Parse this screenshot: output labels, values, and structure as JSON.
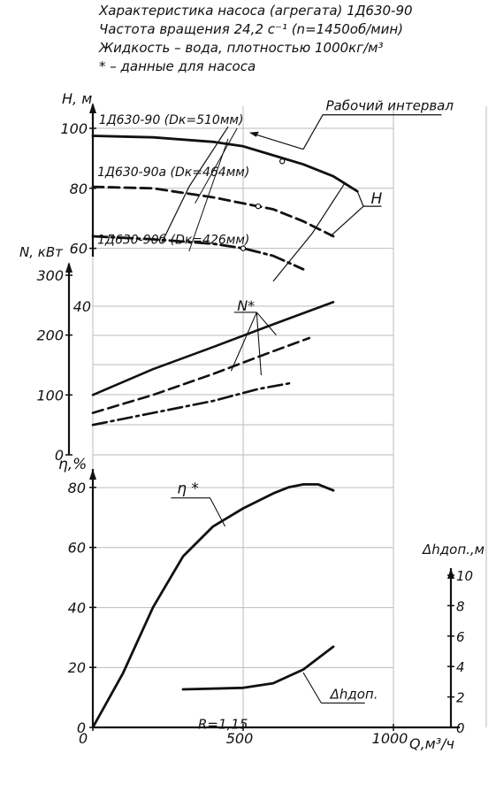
{
  "header": {
    "line1": "Характеристика насоса (агрегата) 1Д630-90",
    "line2": "Частота вращения 24,2 с⁻¹ (n=1450об/мин)",
    "line3": "Жидкость – вода, плотностью 1000кг/м³",
    "line4": "* – данные для насоса"
  },
  "chart_data": {
    "type": "line",
    "x_axis": {
      "label": "Q,м³/ч",
      "ticks": [
        "0",
        "500",
        "1000"
      ],
      "range": [
        0,
        1000
      ]
    },
    "head_axis": {
      "label": "H, м",
      "ticks": [
        "60",
        "80",
        "100"
      ],
      "range": [
        55,
        100
      ]
    },
    "power_axis": {
      "label": "N, кВт",
      "ticks": [
        "0",
        "100",
        "200",
        "300"
      ],
      "extra_tick": "40",
      "range": [
        0,
        300
      ]
    },
    "eff_axis": {
      "label": "η,%",
      "ticks": [
        "0",
        "20",
        "40",
        "60",
        "80"
      ],
      "range": [
        0,
        80
      ]
    },
    "npsh_axis": {
      "label": "Δhдоп.,м",
      "ticks": [
        "0",
        "2",
        "4",
        "6",
        "8",
        "10"
      ],
      "range": [
        0,
        10
      ]
    },
    "annotations": {
      "working_interval": "Рабочий интервал",
      "head_label": "H",
      "power_label": "N*",
      "eff_label": "η *",
      "npsh_label": "Δhдоп.",
      "r_label": "R=1,15"
    },
    "head_series": [
      {
        "name": "1Д630-90 (Dк=510мм)",
        "style": "solid",
        "x": [
          0,
          200,
          400,
          500,
          600,
          700,
          800,
          880
        ],
        "y": [
          97.5,
          97,
          95.5,
          94,
          91,
          88,
          84,
          79
        ]
      },
      {
        "name": "1Д630-90а (Dк=464мм)",
        "style": "dashed",
        "x": [
          0,
          200,
          400,
          500,
          600,
          700,
          800
        ],
        "y": [
          80.5,
          80,
          77,
          75,
          73,
          69,
          64
        ]
      },
      {
        "name": "1Д630-90б (Dк=426мм)",
        "style": "dashdot",
        "x": [
          0,
          200,
          400,
          500,
          600,
          700
        ],
        "y": [
          64,
          63,
          61.5,
          60,
          57.5,
          53
        ]
      }
    ],
    "head_points": [
      {
        "x": 630,
        "y": 89
      },
      {
        "x": 550,
        "y": 74
      },
      {
        "x": 500,
        "y": 60
      }
    ],
    "working_interval": {
      "left": [
        [
          450,
          100.5
        ],
        [
          320,
          80.5
        ],
        [
          230,
          62
        ]
      ],
      "right": [
        [
          840,
          82
        ],
        [
          730,
          65
        ],
        [
          600,
          49
        ]
      ]
    },
    "power_series": [
      {
        "name": "1Д630-90",
        "style": "solid",
        "x": [
          0,
          200,
          400,
          600,
          800
        ],
        "y": [
          100,
          143,
          180,
          218,
          255
        ]
      },
      {
        "name": "1Д630-90а",
        "style": "dashed",
        "x": [
          0,
          200,
          400,
          600,
          720
        ],
        "y": [
          70,
          100,
          135,
          173,
          195
        ]
      },
      {
        "name": "1Д630-90б",
        "style": "dashdot",
        "x": [
          0,
          200,
          400,
          550,
          660
        ],
        "y": [
          50,
          70,
          90,
          110,
          120
        ]
      }
    ],
    "efficiency_series": {
      "name": "η *",
      "style": "solid",
      "x": [
        0,
        100,
        200,
        300,
        400,
        500,
        600,
        650,
        700,
        750,
        800
      ],
      "y": [
        0,
        18,
        40,
        57,
        67,
        73,
        78,
        80,
        81,
        81,
        79
      ]
    },
    "npsh_series": {
      "name": "Δhдоп.",
      "style": "solid",
      "x": [
        300,
        500,
        600,
        700,
        800
      ],
      "y": [
        2.5,
        2.6,
        2.9,
        3.8,
        5.3
      ]
    }
  }
}
